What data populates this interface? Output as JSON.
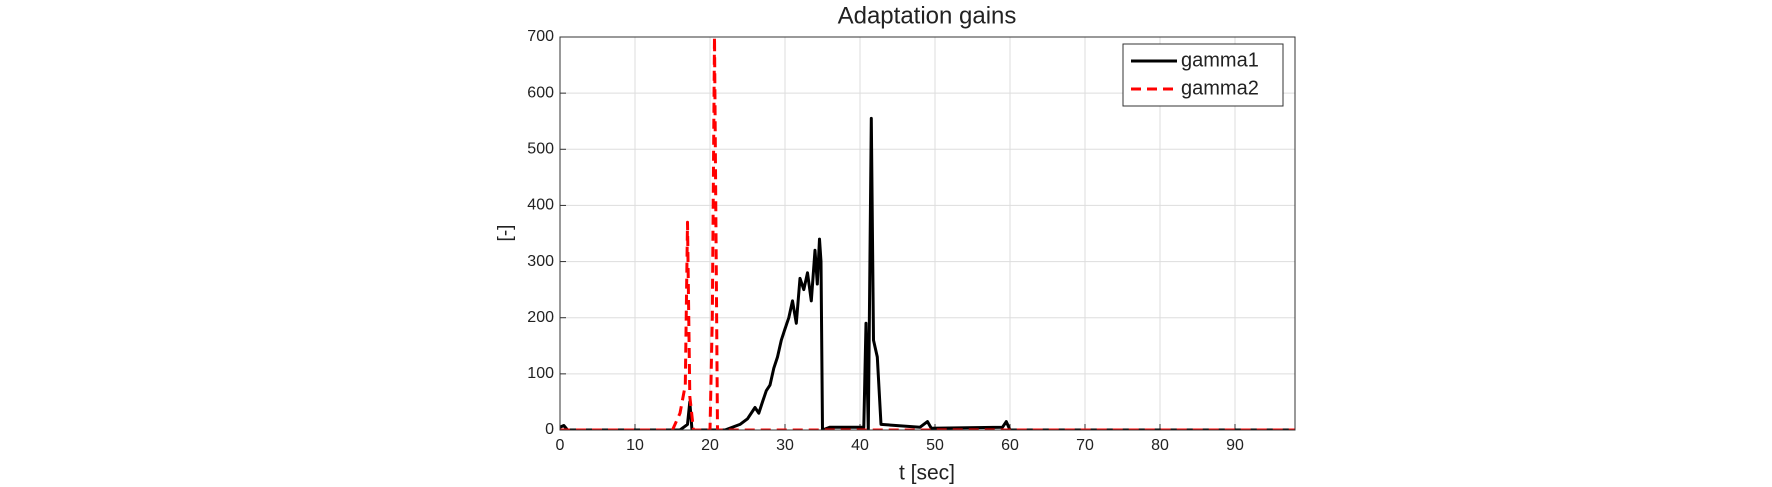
{
  "chart_data": {
    "type": "line",
    "title": "Adaptation gains",
    "x_label": "t [sec]",
    "y_label": "[-]",
    "xlim": [
      0,
      98
    ],
    "xticks": [
      0,
      10,
      20,
      30,
      40,
      50,
      60,
      70,
      80,
      90
    ],
    "ylim": [
      0,
      700
    ],
    "yticks": [
      0,
      100,
      200,
      300,
      400,
      500,
      600,
      700
    ],
    "grid": true,
    "legend": "upper right",
    "series": [
      {
        "name": "gamma1",
        "color": "#000000",
        "dash": "solid",
        "x": [
          0,
          0.5,
          1,
          16,
          17,
          17.3,
          17.6,
          22,
          24,
          25,
          26,
          26.5,
          27,
          27.5,
          28,
          28.5,
          29,
          29.5,
          30,
          30.5,
          31,
          31.5,
          32,
          32.5,
          33,
          33.5,
          34,
          34.3,
          34.6,
          34.8,
          35,
          36,
          40.5,
          40.8,
          41.1,
          41.5,
          41.8,
          42.3,
          42.8,
          48,
          49,
          49.5,
          59,
          59.5,
          60,
          98
        ],
        "values": [
          5,
          8,
          0,
          0,
          10,
          50,
          0,
          0,
          10,
          20,
          40,
          30,
          50,
          70,
          80,
          110,
          130,
          160,
          180,
          200,
          230,
          190,
          270,
          250,
          280,
          230,
          320,
          260,
          340,
          300,
          0,
          5,
          5,
          190,
          0,
          555,
          160,
          130,
          10,
          5,
          15,
          3,
          5,
          15,
          0,
          0
        ]
      },
      {
        "name": "gamma2",
        "color": "#ff0000",
        "dash": "dashed",
        "x": [
          0,
          15,
          16,
          16.7,
          17,
          17.3,
          17.8,
          20,
          20.3,
          20.6,
          21,
          98
        ],
        "values": [
          0,
          0,
          30,
          80,
          370,
          60,
          0,
          0,
          200,
          700,
          0,
          0
        ]
      }
    ]
  }
}
